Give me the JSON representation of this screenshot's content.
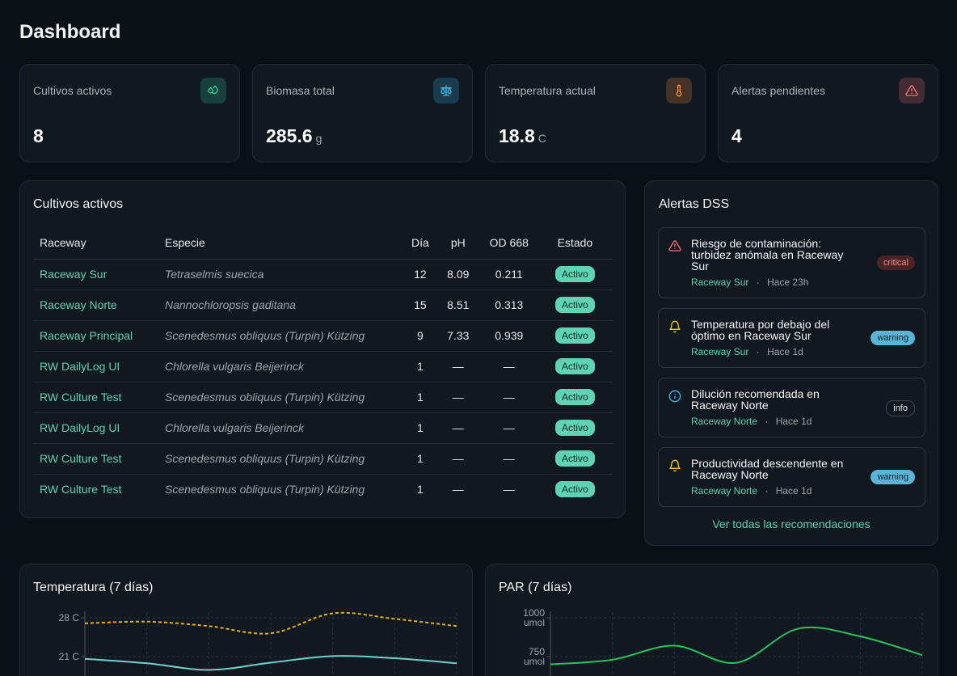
{
  "page": {
    "title": "Dashboard"
  },
  "stats": [
    {
      "label": "Cultivos activos",
      "value": "8",
      "unit": "",
      "icon": "droplets-icon",
      "color": "#2dd4a8"
    },
    {
      "label": "Biomasa total",
      "value": "285.6",
      "unit": "g",
      "icon": "scale-icon",
      "color": "#38bdf8"
    },
    {
      "label": "Temperatura actual",
      "value": "18.8",
      "unit": "C",
      "icon": "thermometer-icon",
      "color": "#fb923c"
    },
    {
      "label": "Alertas pendientes",
      "value": "4",
      "unit": "",
      "icon": "alert-triangle-icon",
      "color": "#f87171"
    }
  ],
  "cultures": {
    "title": "Cultivos activos",
    "columns": [
      "Raceway",
      "Especie",
      "Día",
      "pH",
      "OD 668",
      "Estado"
    ],
    "rows": [
      {
        "raceway": "Raceway Sur",
        "species": "Tetraselmis suecica",
        "day": "12",
        "ph": "8.09",
        "od": "0.211",
        "status": "Activo"
      },
      {
        "raceway": "Raceway Norte",
        "species": "Nannochloropsis gaditana",
        "day": "15",
        "ph": "8.51",
        "od": "0.313",
        "status": "Activo"
      },
      {
        "raceway": "Raceway Principal",
        "species": "Scenedesmus obliquus (Turpin) Kützing",
        "day": "9",
        "ph": "7.33",
        "od": "0.939",
        "status": "Activo"
      },
      {
        "raceway": "RW DailyLog UI",
        "species": "Chlorella vulgaris Beijerinck",
        "day": "1",
        "ph": "—",
        "od": "—",
        "status": "Activo"
      },
      {
        "raceway": "RW Culture Test",
        "species": "Scenedesmus obliquus (Turpin) Kützing",
        "day": "1",
        "ph": "—",
        "od": "—",
        "status": "Activo"
      },
      {
        "raceway": "RW DailyLog UI",
        "species": "Chlorella vulgaris Beijerinck",
        "day": "1",
        "ph": "—",
        "od": "—",
        "status": "Activo"
      },
      {
        "raceway": "RW Culture Test",
        "species": "Scenedesmus obliquus (Turpin) Kützing",
        "day": "1",
        "ph": "—",
        "od": "—",
        "status": "Activo"
      },
      {
        "raceway": "RW Culture Test",
        "species": "Scenedesmus obliquus (Turpin) Kützing",
        "day": "1",
        "ph": "—",
        "od": "—",
        "status": "Activo"
      }
    ]
  },
  "alerts": {
    "title": "Alertas DSS",
    "items": [
      {
        "title": "Riesgo de contaminación: turbidez anómala en Raceway Sur",
        "location": "Raceway Sur",
        "time": "Hace 23h",
        "severity": "critical",
        "icon": "alert-triangle-icon"
      },
      {
        "title": "Temperatura por debajo del óptimo en Raceway Sur",
        "location": "Raceway Sur",
        "time": "Hace 1d",
        "severity": "warning",
        "icon": "bell-icon"
      },
      {
        "title": "Dilución recomendada en Raceway Norte",
        "location": "Raceway Norte",
        "time": "Hace 1d",
        "severity": "info",
        "icon": "info-icon"
      },
      {
        "title": "Productividad descendente en Raceway Norte",
        "location": "Raceway Norte",
        "time": "Hace 1d",
        "severity": "warning",
        "icon": "bell-icon"
      }
    ],
    "separator": "·",
    "view_all": "Ver todas las recomendaciones"
  },
  "chart_data": [
    {
      "type": "line",
      "title": "Temperatura (7 días)",
      "y_ticks": [
        "28 C",
        "21 C"
      ],
      "series": [
        {
          "values": [
            27,
            27.3,
            26.5,
            25.2,
            28.8,
            27.8,
            26.5
          ],
          "color": "#eab308",
          "dashed": true
        },
        {
          "values": [
            20.6,
            19.8,
            18.6,
            19.9,
            21.1,
            20.7,
            19.8
          ],
          "color": "#6ed3c9",
          "dashed": false
        }
      ]
    },
    {
      "type": "line",
      "title": "PAR (7 días)",
      "y_ticks": [
        "1000 umol",
        "750 umol"
      ],
      "series": [
        {
          "values": [
            700,
            730,
            820,
            710,
            930,
            880,
            760
          ],
          "color": "#22c55e",
          "dashed": false
        }
      ]
    }
  ]
}
